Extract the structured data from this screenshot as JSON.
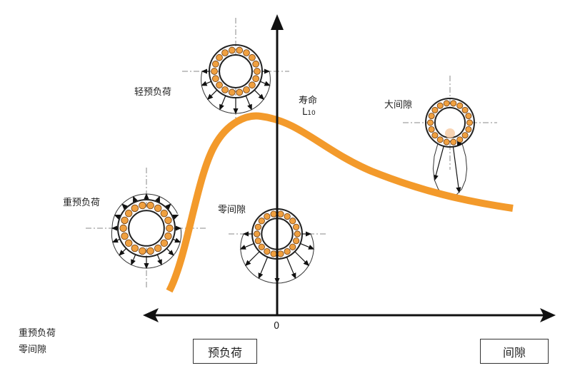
{
  "labels": {
    "light_preload": "轻预负荷",
    "life": "寿命",
    "life_symbol": "L",
    "life_subscript": "10",
    "large_clearance": "大间隙",
    "heavy_preload": "重预负荷",
    "zero_clearance": "零间隙",
    "origin": "0",
    "bottom_left_line1": "重预负荷",
    "bottom_left_line2": "零间隙"
  },
  "axis_boxes": {
    "preload": "预负荷",
    "clearance": "间隙"
  },
  "colors": {
    "curve": "#f39a2b",
    "ball": "#f0a040",
    "axis": "#111111"
  }
}
